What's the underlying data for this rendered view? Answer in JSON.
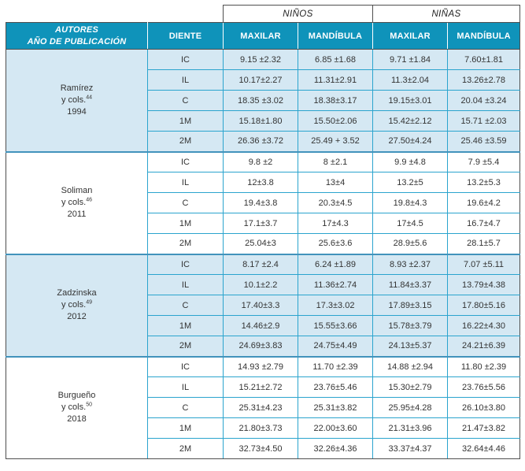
{
  "header": {
    "autores_line1": "AUTORES",
    "autores_line2": "AÑO DE PUBLICACIÓN",
    "diente": "DIENTE",
    "sex_groups": [
      "NIÑOS",
      "NIÑAS"
    ],
    "sub_columns": [
      "MAXILAR",
      "MANDÍBULA",
      "MAXILAR",
      "MANDÍBULA"
    ]
  },
  "groups": [
    {
      "author": "Ramírez",
      "cols_label": "y cols.",
      "ref": "44",
      "year": "1994",
      "rows": [
        {
          "tooth": "IC",
          "values": [
            "9.15 ±2.32",
            "6.85 ±1.68",
            "9.71 ±1.84",
            "7.60±1.81"
          ]
        },
        {
          "tooth": "IL",
          "values": [
            "10.17±2.27",
            "11.31±2.91",
            "11.3±2.04",
            "13.26±2.78"
          ]
        },
        {
          "tooth": "C",
          "values": [
            "18.35 ±3.02",
            "18.38±3.17",
            "19.15±3.01",
            "20.04 ±3.24"
          ]
        },
        {
          "tooth": "1M",
          "values": [
            "15.18±1.80",
            "15.50±2.06",
            "15.42±2.12",
            "15.71 ±2.03"
          ]
        },
        {
          "tooth": "2M",
          "values": [
            "26.36 ±3.72",
            "25.49 + 3.52",
            "27.50±4.24",
            "25.46 ±3.59"
          ]
        }
      ]
    },
    {
      "author": "Soliman",
      "cols_label": "y cols.",
      "ref": "46",
      "year": "2011",
      "rows": [
        {
          "tooth": "IC",
          "values": [
            "9.8 ±2",
            "8 ±2.1",
            "9.9 ±4.8",
            "7.9 ±5.4"
          ]
        },
        {
          "tooth": "IL",
          "values": [
            "12±3.8",
            "13±4",
            "13.2±5",
            "13.2±5.3"
          ]
        },
        {
          "tooth": "C",
          "values": [
            "19.4±3.8",
            "20.3±4.5",
            "19.8±4.3",
            "19.6±4.2"
          ]
        },
        {
          "tooth": "1M",
          "values": [
            "17.1±3.7",
            "17±4.3",
            "17±4.5",
            "16.7±4.7"
          ]
        },
        {
          "tooth": "2M",
          "values": [
            "25.04±3",
            "25.6±3.6",
            "28.9±5.6",
            "28.1±5.7"
          ]
        }
      ]
    },
    {
      "author": "Zadzinska",
      "cols_label": "y cols.",
      "ref": "49",
      "year": "2012",
      "rows": [
        {
          "tooth": "IC",
          "values": [
            "8.17 ±2.4",
            "6.24 ±1.89",
            "8.93 ±2.37",
            "7.07 ±5.11"
          ]
        },
        {
          "tooth": "IL",
          "values": [
            "10.1±2.2",
            "11.36±2.74",
            "11.84±3.37",
            "13.79±4.38"
          ]
        },
        {
          "tooth": "C",
          "values": [
            "17.40±3.3",
            "17.3±3.02",
            "17.89±3.15",
            "17.80±5.16"
          ]
        },
        {
          "tooth": "1M",
          "values": [
            "14.46±2.9",
            "15.55±3.66",
            "15.78±3.79",
            "16.22±4.30"
          ]
        },
        {
          "tooth": "2M",
          "values": [
            "24.69±3.83",
            "24.75±4.49",
            "24.13±5.37",
            "24.21±6.39"
          ]
        }
      ]
    },
    {
      "author": "Burgueño",
      "cols_label": "y cols.",
      "ref": "50",
      "year": "2018",
      "rows": [
        {
          "tooth": "IC",
          "values": [
            "14.93 ±2.79",
            "11.70 ±2.39",
            "14.88 ±2.94",
            "11.80 ±2.39"
          ]
        },
        {
          "tooth": "IL",
          "values": [
            "15.21±2.72",
            "23.76±5.46",
            "15.30±2.79",
            "23.76±5.56"
          ]
        },
        {
          "tooth": "C",
          "values": [
            "25.31±4.23",
            "25.31±3.82",
            "25.95±4.28",
            "26.10±3.80"
          ]
        },
        {
          "tooth": "1M",
          "values": [
            "21.80±3.73",
            "22.00±3.60",
            "21.31±3.96",
            "21.47±3.82"
          ]
        },
        {
          "tooth": "2M",
          "values": [
            "32.73±4.50",
            "32.26±4.36",
            "33.37±4.37",
            "32.64±4.46"
          ]
        }
      ]
    }
  ],
  "colors": {
    "header-bg": "#0f93ba",
    "row-alt-bg": "#d5e8f3",
    "cell-border": "#2ba4ce",
    "group-separator": "#4293bc",
    "frame": "#4f4f4f",
    "text": "#333333"
  }
}
